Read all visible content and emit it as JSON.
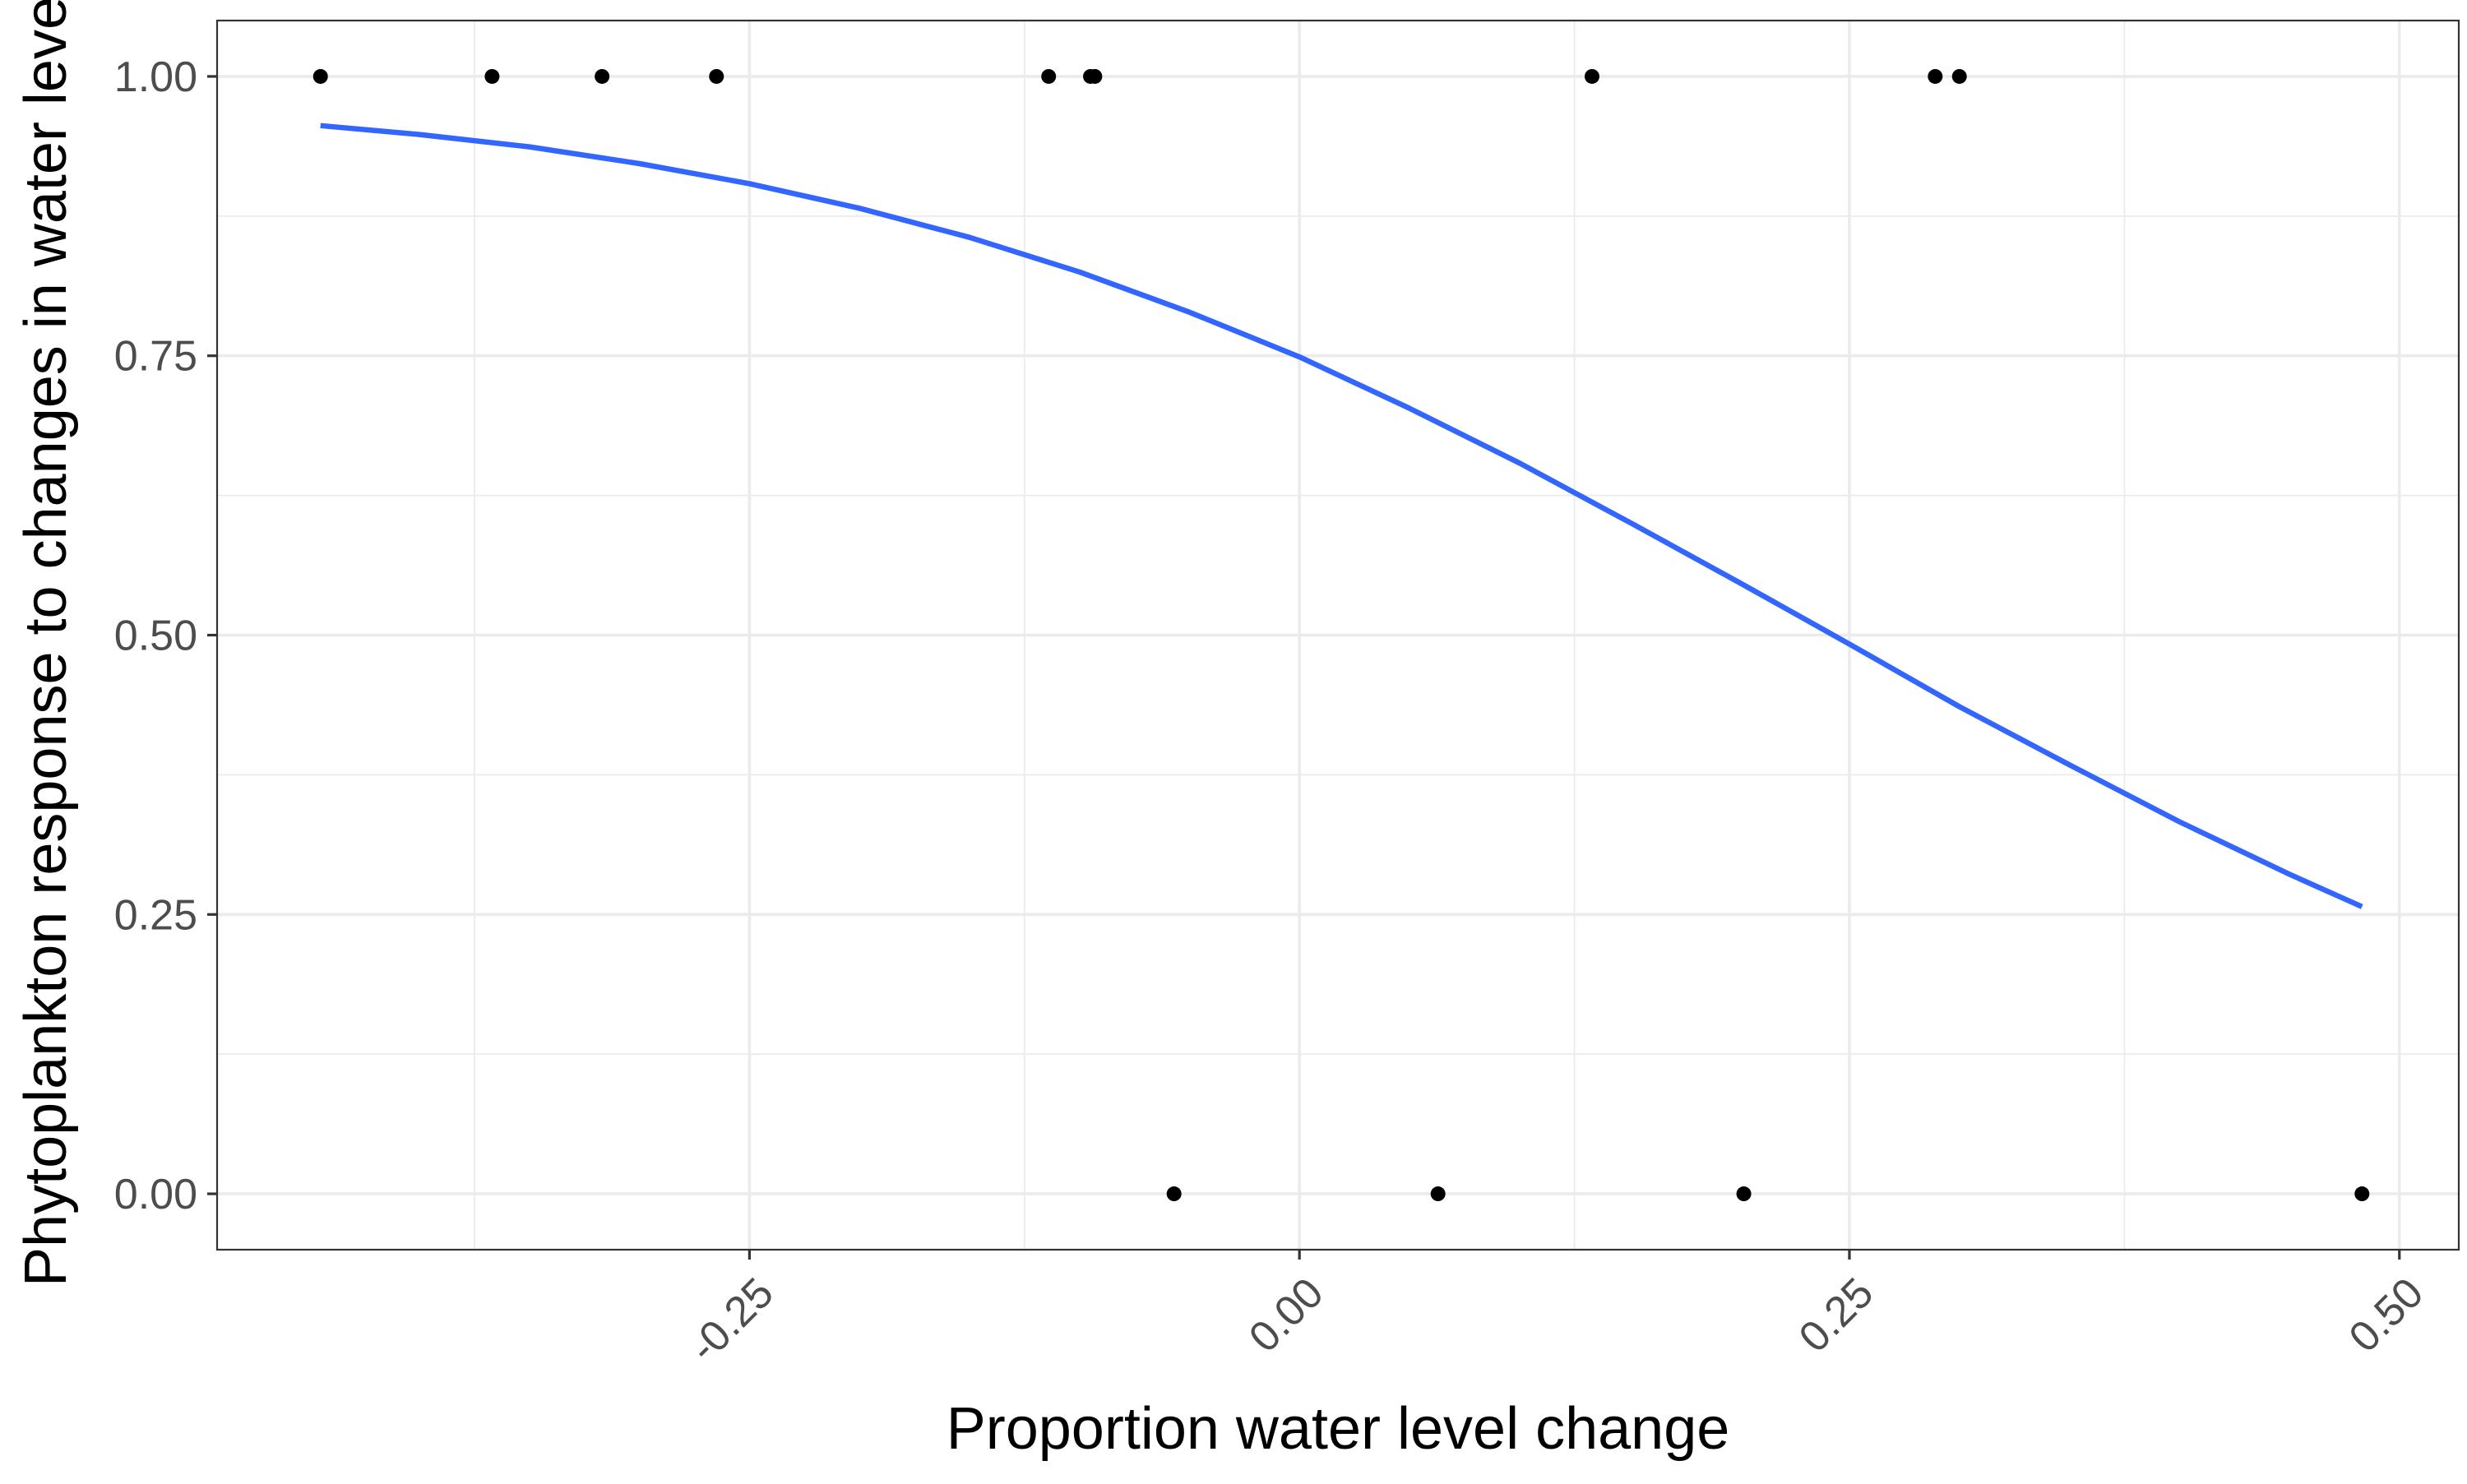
{
  "chart_data": {
    "type": "scatter",
    "title": "",
    "xlabel": "Proportion water level change",
    "ylabel": "Phytoplankton response to changes in water level",
    "xlim": [
      -0.492,
      0.527
    ],
    "ylim": [
      -0.05,
      1.05
    ],
    "x_ticks": [
      -0.25,
      0.0,
      0.25,
      0.5
    ],
    "x_tick_labels": [
      "-0.25",
      "0.00",
      "0.25",
      "0.50"
    ],
    "y_ticks": [
      0.0,
      0.25,
      0.5,
      0.75,
      1.0
    ],
    "y_tick_labels": [
      "0.00",
      "0.25",
      "0.50",
      "0.75",
      "1.00"
    ],
    "grid": true,
    "legend": "none",
    "colors": {
      "points": "#000000",
      "curve": "#3366ff",
      "grid": "#ebebeb",
      "border": "#333333",
      "tick_labels": "#4d4d4d"
    },
    "points": [
      {
        "x": -0.445,
        "y": 1
      },
      {
        "x": -0.367,
        "y": 1
      },
      {
        "x": -0.317,
        "y": 1
      },
      {
        "x": -0.265,
        "y": 1
      },
      {
        "x": -0.114,
        "y": 1
      },
      {
        "x": -0.095,
        "y": 1
      },
      {
        "x": -0.093,
        "y": 1
      },
      {
        "x": 0.133,
        "y": 1
      },
      {
        "x": 0.289,
        "y": 1
      },
      {
        "x": 0.3,
        "y": 1
      },
      {
        "x": -0.057,
        "y": 0
      },
      {
        "x": 0.063,
        "y": 0
      },
      {
        "x": 0.202,
        "y": 0
      },
      {
        "x": 0.483,
        "y": 0
      }
    ],
    "series": [
      {
        "type": "line",
        "x": [
          -0.445,
          -0.4,
          -0.35,
          -0.3,
          -0.25,
          -0.2,
          -0.15,
          -0.1,
          -0.05,
          0.0,
          0.05,
          0.1,
          0.15,
          0.2,
          0.25,
          0.3,
          0.35,
          0.4,
          0.45,
          0.483
        ],
        "y": [
          0.956,
          0.948,
          0.937,
          0.922,
          0.904,
          0.882,
          0.856,
          0.825,
          0.789,
          0.749,
          0.703,
          0.654,
          0.601,
          0.547,
          0.492,
          0.436,
          0.384,
          0.333,
          0.286,
          0.257
        ]
      }
    ]
  }
}
